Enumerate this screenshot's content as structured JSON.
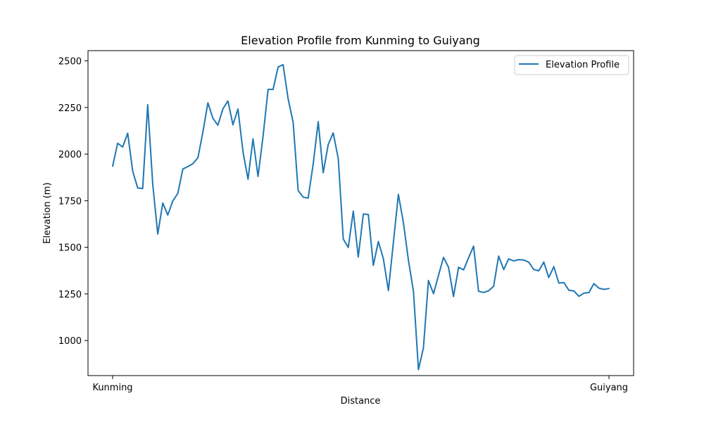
{
  "chart_data": {
    "type": "line",
    "title": "Elevation Profile from Kunming to Guiyang",
    "xlabel": "Distance",
    "ylabel": "Elevation (m)",
    "x_tick_labels": [
      "Kunming",
      "Guiyang"
    ],
    "y_ticks": [
      1000,
      1250,
      1500,
      1750,
      2000,
      2250,
      2500
    ],
    "ylim": [
      812,
      2555
    ],
    "grid": false,
    "legend": {
      "position": "upper right",
      "entries": [
        "Elevation Profile"
      ]
    },
    "series": [
      {
        "name": "Elevation Profile",
        "color": "#1f77b4",
        "values": [
          1935,
          2058,
          2038,
          2112,
          1908,
          1818,
          1815,
          2265,
          1837,
          1571,
          1738,
          1673,
          1749,
          1789,
          1920,
          1933,
          1948,
          1980,
          2118,
          2275,
          2192,
          2155,
          2243,
          2285,
          2157,
          2242,
          2012,
          1865,
          2082,
          1880,
          2094,
          2347,
          2347,
          2467,
          2480,
          2298,
          2170,
          1805,
          1769,
          1764,
          1945,
          2174,
          1900,
          2051,
          2114,
          1975,
          1545,
          1499,
          1694,
          1448,
          1679,
          1676,
          1403,
          1531,
          1440,
          1268,
          1527,
          1784,
          1633,
          1430,
          1264,
          844,
          962,
          1322,
          1251,
          1350,
          1446,
          1393,
          1236,
          1393,
          1379,
          1444,
          1506,
          1264,
          1258,
          1267,
          1291,
          1453,
          1381,
          1438,
          1427,
          1434,
          1432,
          1420,
          1381,
          1374,
          1421,
          1338,
          1396,
          1308,
          1311,
          1270,
          1266,
          1237,
          1254,
          1257,
          1305,
          1281,
          1274,
          1279
        ]
      }
    ]
  }
}
